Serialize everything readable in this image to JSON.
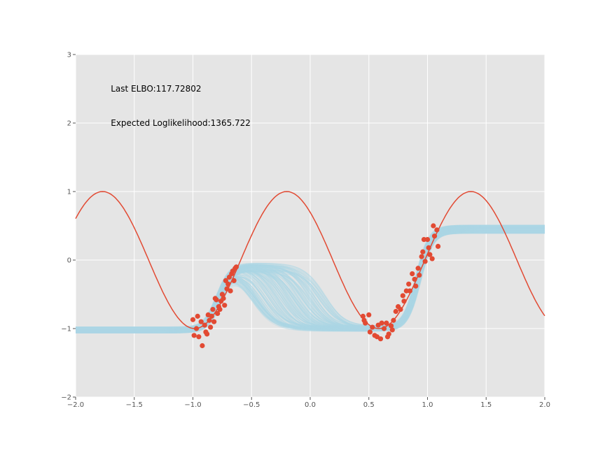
{
  "chart_data": {
    "type": "line",
    "title": "",
    "xlabel": "",
    "ylabel": "",
    "xlim": [
      -2.0,
      2.0
    ],
    "ylim": [
      -2,
      3
    ],
    "x_ticks": [
      -2.0,
      -1.5,
      -1.0,
      -0.5,
      0.0,
      0.5,
      1.0,
      1.5,
      2.0
    ],
    "x_tick_labels": [
      "−2.0",
      "−1.5",
      "−1.0",
      "−0.5",
      "0.0",
      "0.5",
      "1.0",
      "1.5",
      "2.0"
    ],
    "y_ticks": [
      -2,
      -1,
      0,
      1,
      2,
      3
    ],
    "y_tick_labels": [
      "−2",
      "−1",
      "0",
      "1",
      "2",
      "3"
    ],
    "grid": true,
    "background": "#e5e5e5",
    "annotations": [
      {
        "text": "Last ELBO:117.72802",
        "x": -1.7,
        "y": 2.5
      },
      {
        "text": "Expected Loglikelihood:1365.722",
        "x": -1.7,
        "y": 2.0
      }
    ],
    "true_function": {
      "description_visible": "sinusoid",
      "amplitude": 1.0,
      "period": 1.57,
      "peak_x": -1.77,
      "color": "#e24a33"
    },
    "observed_points": {
      "color": "#e24a33",
      "points": [
        [
          -1.0,
          -0.87
        ],
        [
          -0.99,
          -1.1
        ],
        [
          -0.97,
          -1.0
        ],
        [
          -0.96,
          -0.82
        ],
        [
          -0.95,
          -1.12
        ],
        [
          -0.93,
          -0.9
        ],
        [
          -0.92,
          -1.25
        ],
        [
          -0.9,
          -0.95
        ],
        [
          -0.89,
          -1.05
        ],
        [
          -0.88,
          -1.08
        ],
        [
          -0.87,
          -0.8
        ],
        [
          -0.86,
          -0.88
        ],
        [
          -0.85,
          -0.98
        ],
        [
          -0.84,
          -0.82
        ],
        [
          -0.83,
          -0.72
        ],
        [
          -0.82,
          -0.9
        ],
        [
          -0.81,
          -0.56
        ],
        [
          -0.8,
          -0.58
        ],
        [
          -0.79,
          -0.78
        ],
        [
          -0.78,
          -0.68
        ],
        [
          -0.77,
          -0.72
        ],
        [
          -0.76,
          -0.6
        ],
        [
          -0.75,
          -0.5
        ],
        [
          -0.74,
          -0.56
        ],
        [
          -0.73,
          -0.66
        ],
        [
          -0.72,
          -0.3
        ],
        [
          -0.71,
          -0.42
        ],
        [
          -0.7,
          -0.35
        ],
        [
          -0.69,
          -0.25
        ],
        [
          -0.68,
          -0.45
        ],
        [
          -0.67,
          -0.2
        ],
        [
          -0.66,
          -0.16
        ],
        [
          -0.65,
          -0.3
        ],
        [
          -0.64,
          -0.12
        ],
        [
          -0.63,
          -0.1
        ],
        [
          0.45,
          -0.82
        ],
        [
          0.46,
          -0.88
        ],
        [
          0.47,
          -0.92
        ],
        [
          0.5,
          -0.8
        ],
        [
          0.51,
          -1.05
        ],
        [
          0.53,
          -0.98
        ],
        [
          0.55,
          -1.1
        ],
        [
          0.57,
          -1.12
        ],
        [
          0.58,
          -0.95
        ],
        [
          0.6,
          -1.15
        ],
        [
          0.61,
          -0.92
        ],
        [
          0.63,
          -1.0
        ],
        [
          0.65,
          -0.92
        ],
        [
          0.66,
          -1.12
        ],
        [
          0.67,
          -1.08
        ],
        [
          0.69,
          -0.96
        ],
        [
          0.7,
          -1.02
        ],
        [
          0.71,
          -0.88
        ],
        [
          0.73,
          -0.75
        ],
        [
          0.75,
          -0.68
        ],
        [
          0.77,
          -0.72
        ],
        [
          0.79,
          -0.52
        ],
        [
          0.8,
          -0.6
        ],
        [
          0.82,
          -0.45
        ],
        [
          0.84,
          -0.35
        ],
        [
          0.85,
          -0.45
        ],
        [
          0.87,
          -0.2
        ],
        [
          0.89,
          -0.28
        ],
        [
          0.9,
          -0.38
        ],
        [
          0.92,
          -0.12
        ],
        [
          0.93,
          -0.22
        ],
        [
          0.95,
          0.05
        ],
        [
          0.96,
          0.12
        ],
        [
          0.97,
          0.3
        ],
        [
          0.98,
          -0.02
        ],
        [
          1.0,
          0.3
        ],
        [
          1.01,
          0.18
        ],
        [
          1.02,
          0.08
        ],
        [
          1.04,
          0.02
        ],
        [
          1.05,
          0.5
        ],
        [
          1.06,
          0.35
        ],
        [
          1.08,
          0.44
        ],
        [
          1.09,
          0.2
        ]
      ]
    },
    "posterior_samples": {
      "color": "#add8e6",
      "count": 200,
      "left_level": -1.02,
      "mid_level": -0.1,
      "right_level": 0.45,
      "rise1_center": -0.78,
      "fall_center_range": [
        -0.5,
        0.15
      ],
      "rise2_center": 0.92
    }
  }
}
